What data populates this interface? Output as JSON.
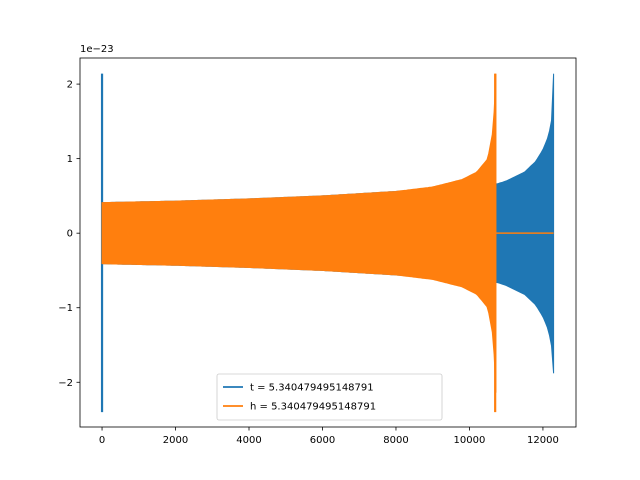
{
  "chart_data": {
    "type": "line",
    "title": "",
    "xlabel": "",
    "ylabel": "",
    "y_offset_label": "1e−23",
    "xlim": [
      -600,
      12900
    ],
    "ylim": [
      -2.6,
      2.35
    ],
    "xticks": [
      0,
      2000,
      4000,
      6000,
      8000,
      10000,
      12000
    ],
    "xtick_labels": [
      "0",
      "2000",
      "4000",
      "6000",
      "8000",
      "10000",
      "12000"
    ],
    "yticks": [
      -2,
      -1,
      0,
      1,
      2
    ],
    "ytick_labels": [
      "−2",
      "−1",
      "0",
      "1",
      "2"
    ],
    "grid": false,
    "legend_position": "lower-center",
    "series": [
      {
        "name": "t = 5.340479495148791",
        "color": "#1f77b4",
        "spike": {
          "x": 0,
          "min": -2.4,
          "max": 2.14
        },
        "envelope_x": [
          0,
          2000,
          4000,
          6000,
          8000,
          9000,
          10000,
          10500,
          10750,
          11000,
          11500,
          11800,
          12000,
          12150,
          12250,
          12290
        ],
        "envelope_y": [
          0.41,
          0.43,
          0.46,
          0.5,
          0.56,
          0.6,
          0.66,
          0.66,
          0.66,
          0.7,
          0.82,
          0.96,
          1.12,
          1.3,
          1.55,
          2.14
        ],
        "end_min": -1.88,
        "x_end": 12290
      },
      {
        "name": "h = 5.340479495148791",
        "color": "#ff7f0e",
        "spike": {
          "x": 10700,
          "min": -2.4,
          "max": 2.14
        },
        "envelope_x": [
          0,
          2000,
          4000,
          6000,
          8000,
          9000,
          9800,
          10200,
          10500,
          10650,
          10720
        ],
        "envelope_y": [
          0.41,
          0.43,
          0.46,
          0.5,
          0.56,
          0.62,
          0.72,
          0.82,
          1.0,
          1.4,
          2.14
        ],
        "flat_segment": {
          "x": [
            10720,
            12290
          ],
          "y": 0
        }
      }
    ]
  }
}
